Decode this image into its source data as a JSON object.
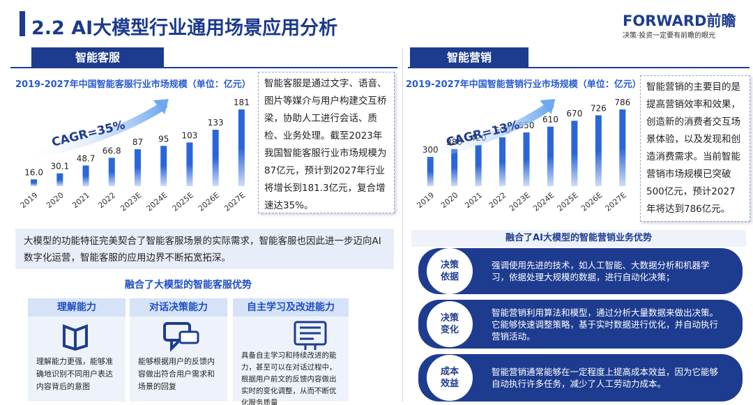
{
  "header": {
    "title": "2.2 AI大模型行业通用场景应用分析",
    "logo": "FORWARD前瞻",
    "slogan": "决策·投资一定要有前瞻的眼光"
  },
  "chart_data": [
    {
      "type": "bar",
      "title": "2019-2027年中国智能客服行业市场规模（单位：亿元）",
      "categories": [
        "2019",
        "2020",
        "2021",
        "2022",
        "2023E",
        "2024E",
        "2025E",
        "2026E",
        "2027E"
      ],
      "values": [
        16.0,
        30.1,
        48.7,
        66.8,
        87,
        95,
        103,
        133,
        181
      ],
      "value_labels": [
        "16.0",
        "30.1",
        "48.7",
        "66.8",
        "87",
        "95",
        "103",
        "133",
        "181"
      ],
      "color": "#2a66d9",
      "annotation": "CAGR=35%"
    },
    {
      "type": "bar",
      "title": "2019-2027年中国智能营销行业市场规模（单位：亿元）",
      "categories": [
        "2019",
        "2020",
        "2021",
        "2022",
        "2023E",
        "2024E",
        "2025E",
        "2026E",
        "2027E"
      ],
      "values": [
        300,
        380,
        420,
        500,
        550,
        610,
        670,
        726,
        786
      ],
      "color": "#2a66d9",
      "annotation": "CAGR=13%"
    }
  ],
  "left": {
    "section": "智能客服",
    "description": "智能客服是通过文字、语音、图片等媒介与用户构建交互桥梁，协助人工进行会话、质检、业务处理。截至2023年我国智能客服行业市场规模为87亿元，预计到2027年行业将增长到181.3亿元，复合增速达35%。",
    "summary": "大模型的功能特征完美契合了智能客服场景的实际需求，智能客服也因此进一步迈向AI数字化运营，智能客服的应用边界不断拓宽拓深。",
    "advantages_title": "融合了大模型的智能客服优势",
    "cards": [
      {
        "title": "理解能力",
        "text": "理解能力更强，能够准确地识别不同用户表达内容背后的意图"
      },
      {
        "title": "对话决策能力",
        "text": "能够根据用户的反馈内容做出符合用户需求和场景的回复"
      },
      {
        "title": "自主学习及改进能力",
        "text": "具备自主学习和持续改进的能力，甚至可以在对话过程中，根据用户前文的反馈内容做出实时的变化调整，从而不断优化服务质量"
      }
    ]
  },
  "right": {
    "section": "智能营销",
    "description": "智能营销的主要目的是提高营销效率和效果，创造新的消费者交互场景体验，以及发现和创造消费需求。当前智能营销市场规模已突破500亿元，预计2027年将达到786亿元。",
    "advantages_title": "融合了AI大模型的智能营销业务优势",
    "items": [
      {
        "label": "决策依据",
        "text": "强调使用先进的技术，如人工智能、大数据分析和机器学习，依据处理大规模的数据，进行自动化决策；"
      },
      {
        "label": "决策变化",
        "text": "智能营销利用算法和模型，通过分析大量数据来做出决策。它能够快速调整策略，基于实时数据进行优化，并自动执行营销活动。"
      },
      {
        "label": "成本效益",
        "text": "智能营销通常能够在一定程度上提高成本效益，因为它能够自动执行许多任务，减少了人工劳动力成本。"
      }
    ]
  }
}
